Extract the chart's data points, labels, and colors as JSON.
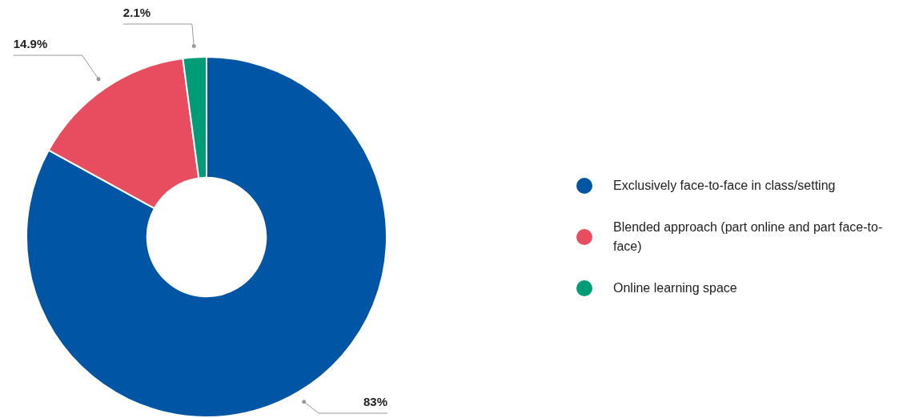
{
  "chart_data": {
    "type": "donut",
    "categories": [
      "Exclusively face-to-face in class/setting",
      "Blended approach (part online and part face-to-face)",
      "Online learning space"
    ],
    "values": [
      83,
      14.9,
      2.1
    ],
    "colors": [
      "#0055a5",
      "#e84c5f",
      "#009b77"
    ],
    "value_labels": [
      "83%",
      "14.9%",
      "2.1%"
    ],
    "legend": "right"
  }
}
